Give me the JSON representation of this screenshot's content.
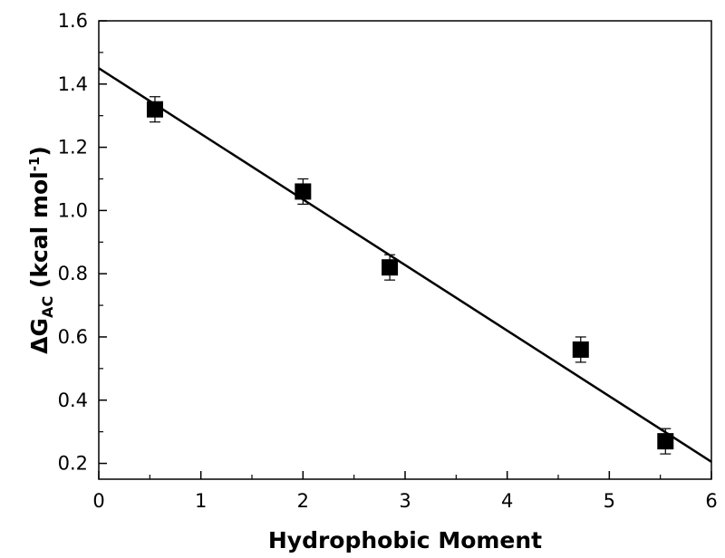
{
  "chart_data": {
    "type": "scatter",
    "title": "",
    "xlabel": "Hydrophobic Moment",
    "ylabel": {
      "symbol": "ΔG",
      "subscript": "AC",
      "unit_open": " (kcal mol",
      "superscript": "-1",
      "unit_close": ")"
    },
    "xlim": [
      0,
      6
    ],
    "ylim": [
      0.15,
      1.6
    ],
    "x_ticks": [
      0,
      1,
      2,
      3,
      4,
      5,
      6
    ],
    "x_tick_labels": [
      "0",
      "1",
      "2",
      "3",
      "4",
      "5",
      "6"
    ],
    "y_ticks": [
      0.2,
      0.4,
      0.6,
      0.8,
      1.0,
      1.2,
      1.4,
      1.6
    ],
    "y_tick_labels": [
      "0.2",
      "0.4",
      "0.6",
      "0.8",
      "1.0",
      "1.2",
      "1.4",
      "1.6"
    ],
    "grid": false,
    "series": [
      {
        "marker": "square",
        "color": "#000000",
        "points": [
          {
            "x": 0.55,
            "y": 1.32,
            "err": 0.04
          },
          {
            "x": 2.0,
            "y": 1.06,
            "err": 0.04
          },
          {
            "x": 2.85,
            "y": 0.82,
            "err": 0.04
          },
          {
            "x": 4.72,
            "y": 0.56,
            "err": 0.04
          },
          {
            "x": 5.55,
            "y": 0.27,
            "err": 0.04
          }
        ]
      }
    ],
    "fit_line": {
      "x": [
        0,
        6
      ],
      "y": [
        1.45,
        0.205
      ],
      "color": "#000000"
    }
  }
}
